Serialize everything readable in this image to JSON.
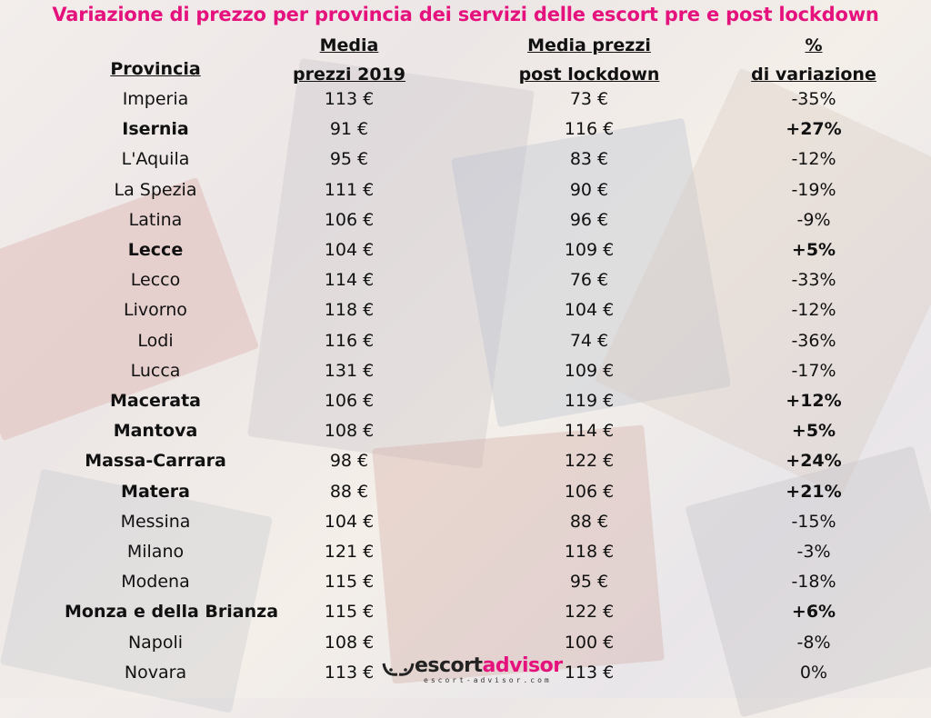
{
  "title": "Variazione di prezzo per provincia dei servizi delle escort pre e post lockdown",
  "colors": {
    "title": "#e5127d",
    "text": "#111111"
  },
  "logo": {
    "brand_a": "escort",
    "brand_b": "advisor",
    "url": "escort-advisor.com"
  },
  "chart_data": {
    "type": "table",
    "title": "Variazione di prezzo per provincia dei servizi delle escort pre e post lockdown",
    "columns": [
      "Provincia",
      "Media\nprezzi 2019",
      "Media prezzi\npost lockdown",
      "%\ndi variazione"
    ],
    "rows": [
      {
        "provincia": "Imperia",
        "p2019": "113 €",
        "post": "73 €",
        "var": "-35%",
        "bold": false
      },
      {
        "provincia": "Isernia",
        "p2019": "91 €",
        "post": "116 €",
        "var": "+27%",
        "bold": true
      },
      {
        "provincia": "L'Aquila",
        "p2019": "95 €",
        "post": "83 €",
        "var": "-12%",
        "bold": false
      },
      {
        "provincia": "La Spezia",
        "p2019": "111 €",
        "post": "90 €",
        "var": "-19%",
        "bold": false
      },
      {
        "provincia": "Latina",
        "p2019": "106 €",
        "post": "96 €",
        "var": "-9%",
        "bold": false
      },
      {
        "provincia": "Lecce",
        "p2019": "104 €",
        "post": "109 €",
        "var": "+5%",
        "bold": true
      },
      {
        "provincia": "Lecco",
        "p2019": "114 €",
        "post": "76 €",
        "var": "-33%",
        "bold": false
      },
      {
        "provincia": "Livorno",
        "p2019": "118 €",
        "post": "104 €",
        "var": "-12%",
        "bold": false
      },
      {
        "provincia": "Lodi",
        "p2019": "116 €",
        "post": "74 €",
        "var": "-36%",
        "bold": false
      },
      {
        "provincia": "Lucca",
        "p2019": "131 €",
        "post": "109 €",
        "var": "-17%",
        "bold": false
      },
      {
        "provincia": "Macerata",
        "p2019": "106 €",
        "post": "119 €",
        "var": "+12%",
        "bold": true
      },
      {
        "provincia": "Mantova",
        "p2019": "108 €",
        "post": "114 €",
        "var": "+5%",
        "bold": true
      },
      {
        "provincia": "Massa-Carrara",
        "p2019": "98 €",
        "post": "122 €",
        "var": "+24%",
        "bold": true
      },
      {
        "provincia": "Matera",
        "p2019": "88 €",
        "post": "106 €",
        "var": "+21%",
        "bold": true
      },
      {
        "provincia": "Messina",
        "p2019": "104 €",
        "post": "88 €",
        "var": "-15%",
        "bold": false
      },
      {
        "provincia": "Milano",
        "p2019": "121 €",
        "post": "118 €",
        "var": "-3%",
        "bold": false
      },
      {
        "provincia": "Modena",
        "p2019": "115 €",
        "post": "95 €",
        "var": "-18%",
        "bold": false
      },
      {
        "provincia": "Monza e della Brianza",
        "p2019": "115 €",
        "post": "122 €",
        "var": "+6%",
        "bold": true
      },
      {
        "provincia": "Napoli",
        "p2019": "108 €",
        "post": "100 €",
        "var": "-8%",
        "bold": false
      },
      {
        "provincia": "Novara",
        "p2019": "113 €",
        "post": "113 €",
        "var": "0%",
        "bold": false
      }
    ]
  }
}
